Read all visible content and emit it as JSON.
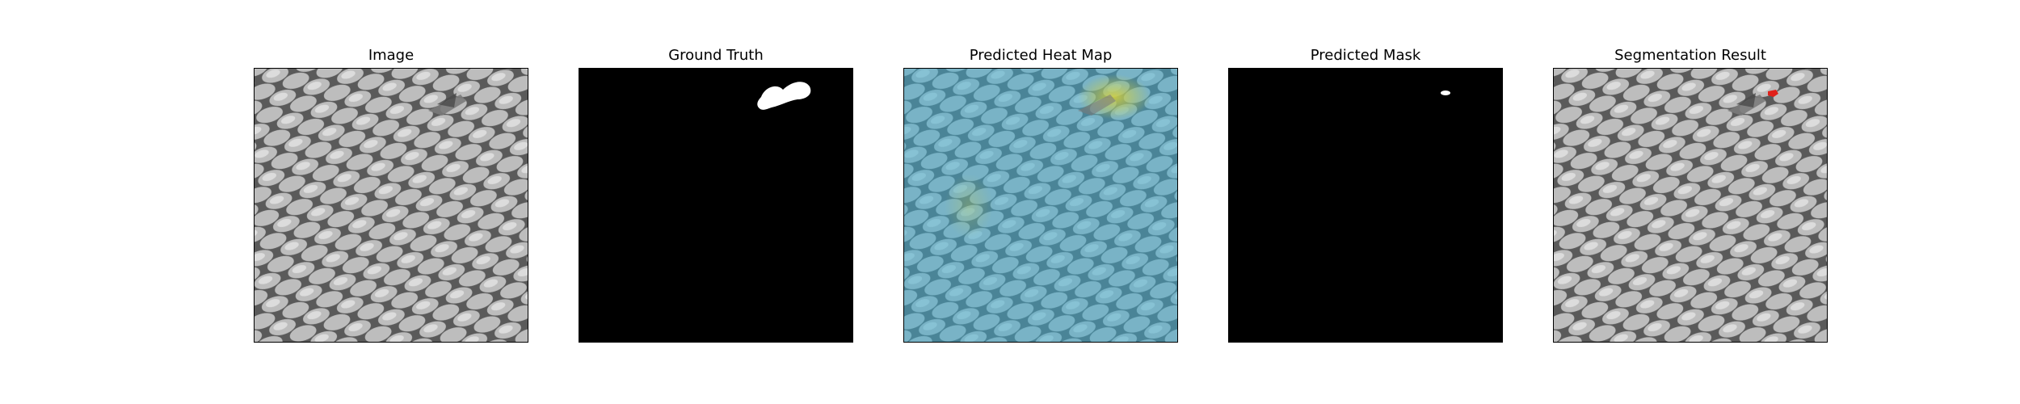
{
  "figure": {
    "panels": [
      {
        "title": "Image"
      },
      {
        "title": "Ground Truth"
      },
      {
        "title": "Predicted Heat Map"
      },
      {
        "title": "Predicted Mask"
      },
      {
        "title": "Segmentation Result"
      }
    ]
  },
  "colors": {
    "background": "#ffffff",
    "mask_background": "#000000",
    "mask_foreground": "#ffffff",
    "overlay_highlight": "#e0201a",
    "heatmap_low": "#3e6fd8",
    "heatmap_mid": "#3fc2c9",
    "heatmap_high": "#c8d23c"
  }
}
